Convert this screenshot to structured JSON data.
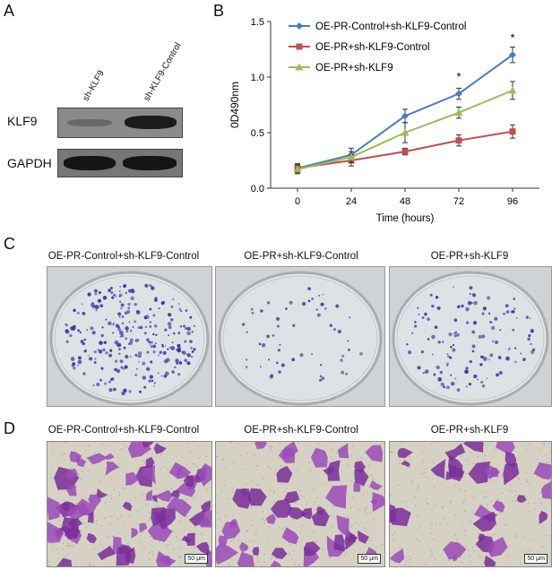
{
  "panels": {
    "a": "A",
    "b": "B",
    "c": "C",
    "d": "D"
  },
  "western_blot": {
    "columns": [
      "sh-KLF9",
      "sh-KLF9-Control"
    ],
    "rows": [
      "KLF9",
      "GAPDH"
    ]
  },
  "chart_data": {
    "type": "line",
    "x": [
      0,
      24,
      48,
      72,
      96
    ],
    "xlabel": "Time (hours)",
    "ylabel": "0D490nm",
    "xlim": [
      -12,
      108
    ],
    "ylim": [
      0,
      1.5
    ],
    "yticks": [
      "0.0",
      "0.5",
      "1.0",
      "1.5"
    ],
    "xticks": [
      "0",
      "24",
      "48",
      "72",
      "96"
    ],
    "legend_position": "top-left",
    "grid": false,
    "series": [
      {
        "name": "OE-PR-Control+sh-KLF9-Control",
        "color": "#4a7ebb",
        "values": [
          0.18,
          0.3,
          0.65,
          0.85,
          1.2
        ],
        "errors": [
          0.04,
          0.06,
          0.06,
          0.05,
          0.07
        ]
      },
      {
        "name": "OE-PR+sh-KLF9-Control",
        "color": "#c0504d",
        "values": [
          0.18,
          0.25,
          0.33,
          0.43,
          0.51
        ],
        "errors": [
          0.04,
          0.05,
          0.03,
          0.05,
          0.06
        ]
      },
      {
        "name": "OE-PR+sh-KLF9",
        "color": "#9bbb59",
        "values": [
          0.17,
          0.28,
          0.5,
          0.68,
          0.88
        ],
        "errors": [
          0.04,
          0.05,
          0.09,
          0.05,
          0.08
        ]
      }
    ],
    "annotations": [
      {
        "x": 72,
        "y": 1.0,
        "text": "*"
      },
      {
        "x": 96,
        "y": 1.35,
        "text": "*"
      }
    ]
  },
  "colony": {
    "captions": [
      "OE-PR-Control+sh-KLF9-Control",
      "OE-PR+sh-KLF9-Control",
      "OE-PR+sh-KLF9"
    ]
  },
  "migration": {
    "captions": [
      "OE-PR-Control+sh-KLF9-Control",
      "OE-PR+sh-KLF9-Control",
      "OE-PR+sh-KLF9"
    ],
    "scale_label": "50 μm"
  }
}
